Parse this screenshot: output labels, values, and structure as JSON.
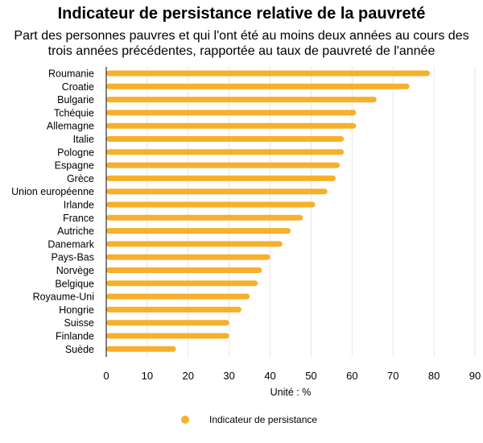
{
  "title": "Indicateur de persistance relative de la pauvreté",
  "subtitle_line1": "Part des personnes pauvres et qui l'ont été au moins deux années au cours des",
  "subtitle_line2": "trois années précédentes, rapportée au taux de pauvreté de l'année",
  "colors": {
    "bar": "#F7B02C",
    "grid": "#E6E6E6",
    "axis": "#000000"
  },
  "chart_data": {
    "type": "bar",
    "orientation": "horizontal",
    "title": "Indicateur de persistance relative de la pauvreté",
    "xlabel": "Unité : %",
    "ylabel": "",
    "xlim": [
      0,
      90
    ],
    "xticks": [
      0,
      10,
      20,
      30,
      40,
      50,
      60,
      70,
      80,
      90
    ],
    "grid": "vertical",
    "legend_position": "bottom",
    "categories": [
      "Roumanie",
      "Croatie",
      "Bulgarie",
      "Tchéquie",
      "Allemagne",
      "Italie",
      "Pologne",
      "Espagne",
      "Grèce",
      "Union européenne",
      "Irlande",
      "France",
      "Autriche",
      "Danemark",
      "Pays-Bas",
      "Norvège",
      "Belgique",
      "Royaume-Uni",
      "Hongrie",
      "Suisse",
      "Finlande",
      "Suède"
    ],
    "series": [
      {
        "name": "Indicateur de persistance",
        "values": [
          79,
          74,
          66,
          61,
          61,
          58,
          58,
          57,
          56,
          54,
          51,
          48,
          45,
          43,
          40,
          38,
          37,
          35,
          33,
          30,
          30,
          17
        ]
      }
    ]
  }
}
